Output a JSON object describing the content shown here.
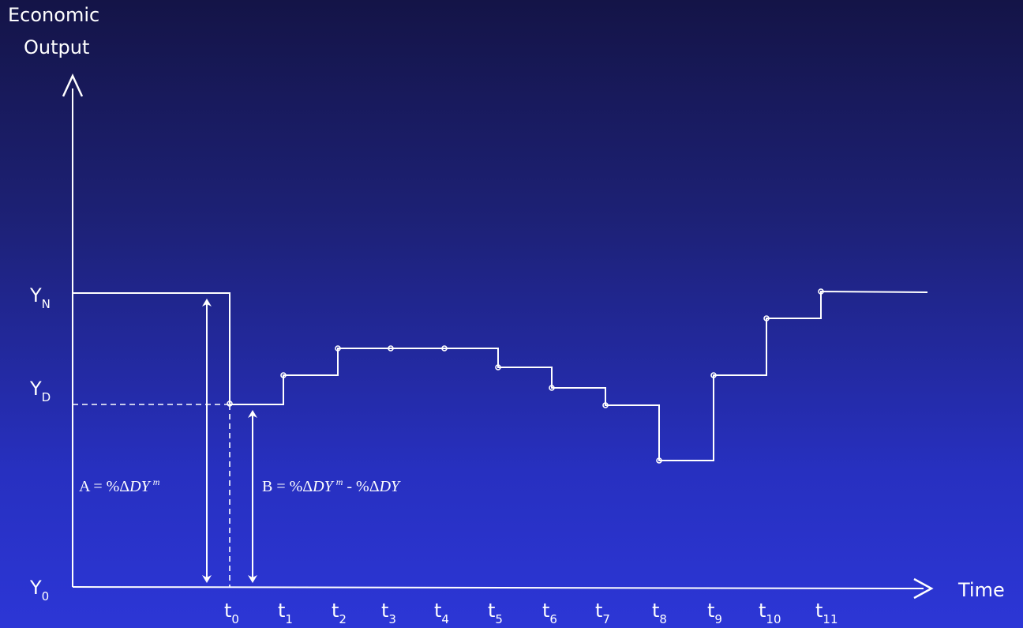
{
  "axes": {
    "y_title_line1": "Economic",
    "y_title_line2": "Output",
    "x_title": "Time"
  },
  "y_levels": [
    {
      "base": "Y",
      "sub": "N"
    },
    {
      "base": "Y",
      "sub": "D"
    },
    {
      "base": "Y",
      "sub": "0"
    }
  ],
  "time_ticks": [
    {
      "base": "t",
      "sub": "0"
    },
    {
      "base": "t",
      "sub": "1"
    },
    {
      "base": "t",
      "sub": "2"
    },
    {
      "base": "t",
      "sub": "3"
    },
    {
      "base": "t",
      "sub": "4"
    },
    {
      "base": "t",
      "sub": "5"
    },
    {
      "base": "t",
      "sub": "6"
    },
    {
      "base": "t",
      "sub": "7"
    },
    {
      "base": "t",
      "sub": "8"
    },
    {
      "base": "t",
      "sub": "9"
    },
    {
      "base": "t",
      "sub": "10"
    },
    {
      "base": "t",
      "sub": "11"
    }
  ],
  "formula_a": {
    "prefix": "A = %Δ",
    "var": "DY",
    "sup": "m"
  },
  "formula_b": {
    "prefix": "B = %Δ",
    "var": "DY",
    "sup": "m",
    "middle": " - %Δ",
    "var2": "DY"
  },
  "colors": {
    "line": "#ffffff",
    "background_top": "#141447",
    "background_bottom": "#2c36d6"
  }
}
